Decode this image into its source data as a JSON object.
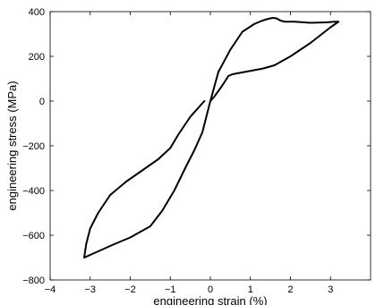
{
  "chart_data": {
    "type": "line",
    "title": "",
    "xlabel": "engineering strain (%)",
    "ylabel": "engineering stress (MPa)",
    "xlim": [
      -4,
      4
    ],
    "ylim": [
      -800,
      400
    ],
    "xticks": [
      -4,
      -3,
      -2,
      -1,
      0,
      1,
      2,
      3
    ],
    "yticks": [
      -800,
      -600,
      -400,
      -200,
      0,
      200,
      400
    ],
    "grid": false,
    "box": true,
    "line_color": "#000000",
    "series": [
      {
        "x": [
          -0.15,
          -0.5,
          -0.8,
          -1.0,
          -1.3,
          -1.7,
          -2.1,
          -2.5,
          -2.8,
          -3.0,
          -3.1,
          -3.15,
          -2.9,
          -2.4,
          -2.0,
          -1.5,
          -1.2,
          -0.9,
          -0.6,
          -0.4,
          -0.2,
          0.0,
          0.2,
          0.5,
          0.8,
          1.1,
          1.3,
          1.45,
          1.55,
          1.65,
          1.75,
          1.85,
          2.1,
          2.5,
          2.9,
          3.1,
          3.2,
          3.0,
          2.5,
          2.0,
          1.6,
          1.3,
          1.0,
          0.7,
          0.55,
          0.45,
          0.3,
          0.1,
          0.0
        ],
        "y": [
          0,
          -70,
          -150,
          -210,
          -260,
          -310,
          -360,
          -420,
          -500,
          -570,
          -640,
          -700,
          -680,
          -640,
          -610,
          -560,
          -490,
          -400,
          -290,
          -220,
          -140,
          0,
          130,
          230,
          310,
          345,
          360,
          368,
          372,
          370,
          360,
          355,
          355,
          350,
          352,
          355,
          355,
          330,
          260,
          200,
          160,
          145,
          135,
          125,
          120,
          112,
          70,
          20,
          0
        ]
      }
    ]
  }
}
